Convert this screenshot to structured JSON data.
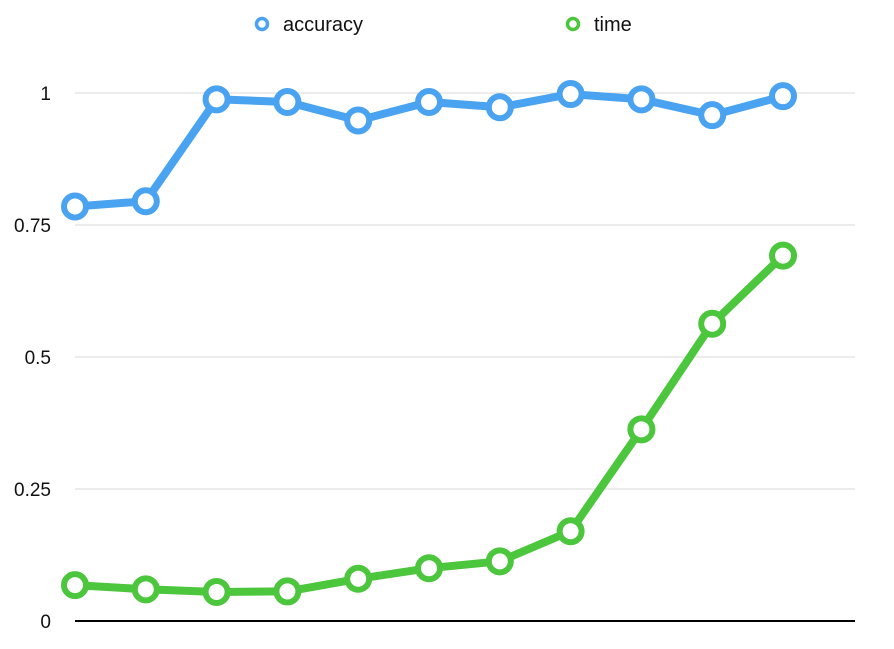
{
  "chart_data": {
    "type": "line",
    "x": [
      1,
      2,
      3,
      4,
      5,
      6,
      7,
      8,
      9,
      10,
      11
    ],
    "series": [
      {
        "name": "accuracy",
        "color": "#4aa3f0",
        "values": [
          0.785,
          0.795,
          0.988,
          0.983,
          0.948,
          0.983,
          0.973,
          0.998,
          0.988,
          0.958,
          0.994
        ]
      },
      {
        "name": "time",
        "color": "#4cc63c",
        "values": [
          0.068,
          0.06,
          0.055,
          0.056,
          0.08,
          0.1,
          0.113,
          0.17,
          0.363,
          0.563,
          0.692
        ]
      }
    ],
    "y_ticks": [
      {
        "value": 0,
        "label": "0"
      },
      {
        "value": 0.25,
        "label": "0.25"
      },
      {
        "value": 0.5,
        "label": "0.5"
      },
      {
        "value": 0.75,
        "label": "0.75"
      },
      {
        "value": 1,
        "label": "1"
      }
    ],
    "ylim": [
      0,
      1
    ],
    "grid": true,
    "legend_position": "top-center",
    "title": "",
    "xlabel": "",
    "ylabel": ""
  }
}
